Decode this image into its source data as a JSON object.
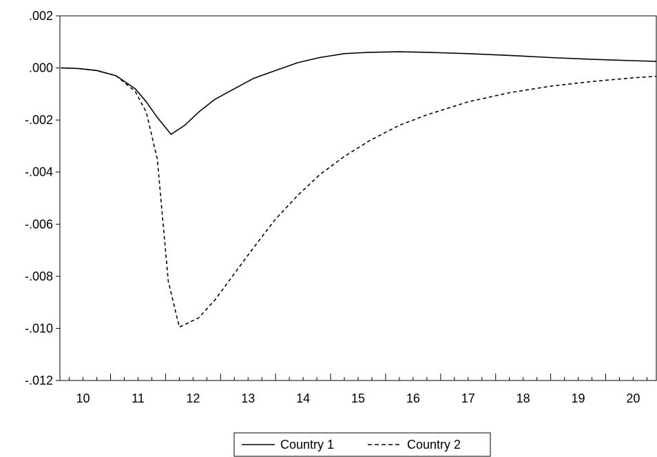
{
  "chart_data": {
    "type": "line",
    "title": "",
    "xlabel": "",
    "ylabel": "",
    "xlim": [
      9.58,
      20.42
    ],
    "ylim": [
      -0.012,
      0.002
    ],
    "y_ticks": [
      ".002",
      ".000",
      "-.002",
      "-.004",
      "-.006",
      "-.008",
      "-.010",
      "-.012"
    ],
    "y_tick_values": [
      0.002,
      0.0,
      -0.002,
      -0.004,
      -0.006,
      -0.008,
      -0.01,
      -0.012
    ],
    "x_ticks": [
      "10",
      "11",
      "12",
      "13",
      "14",
      "15",
      "16",
      "17",
      "18",
      "19",
      "20"
    ],
    "x_tick_values": [
      10,
      11,
      12,
      13,
      14,
      15,
      16,
      17,
      18,
      19,
      20
    ],
    "grid": false,
    "legend_position": "bottom-center",
    "series": [
      {
        "name": "Country 1",
        "style": "solid",
        "x": [
          9.6,
          9.9,
          10.25,
          10.6,
          10.95,
          11.15,
          11.35,
          11.6,
          11.85,
          12.1,
          12.4,
          12.75,
          13.1,
          13.5,
          13.9,
          14.3,
          14.75,
          15.2,
          15.75,
          16.25,
          17.0,
          17.75,
          18.5,
          19.25,
          20.0,
          20.42
        ],
        "y": [
          0.0,
          -2e-05,
          -0.0001,
          -0.0003,
          -0.0008,
          -0.0013,
          -0.0019,
          -0.00255,
          -0.0022,
          -0.0017,
          -0.0012,
          -0.0008,
          -0.0004,
          -0.0001,
          0.0002,
          0.0004,
          0.00055,
          0.0006,
          0.00062,
          0.0006,
          0.00055,
          0.00048,
          0.0004,
          0.00033,
          0.00028,
          0.00025
        ]
      },
      {
        "name": "Country 2",
        "style": "dashed",
        "x": [
          9.6,
          9.9,
          10.25,
          10.6,
          10.95,
          11.15,
          11.35,
          11.55,
          11.75,
          11.9,
          12.1,
          12.4,
          12.75,
          13.1,
          13.5,
          13.9,
          14.3,
          14.75,
          15.2,
          15.75,
          16.25,
          17.0,
          17.75,
          18.5,
          19.25,
          20.0,
          20.42
        ],
        "y": [
          0.0,
          -2e-05,
          -0.0001,
          -0.0003,
          -0.0009,
          -0.0017,
          -0.0035,
          -0.0082,
          -0.00995,
          -0.0098,
          -0.0096,
          -0.0089,
          -0.0079,
          -0.0069,
          -0.0058,
          -0.0049,
          -0.0041,
          -0.0034,
          -0.0028,
          -0.0022,
          -0.0018,
          -0.0013,
          -0.00095,
          -0.0007,
          -0.00052,
          -0.00038,
          -0.00032
        ]
      }
    ]
  }
}
